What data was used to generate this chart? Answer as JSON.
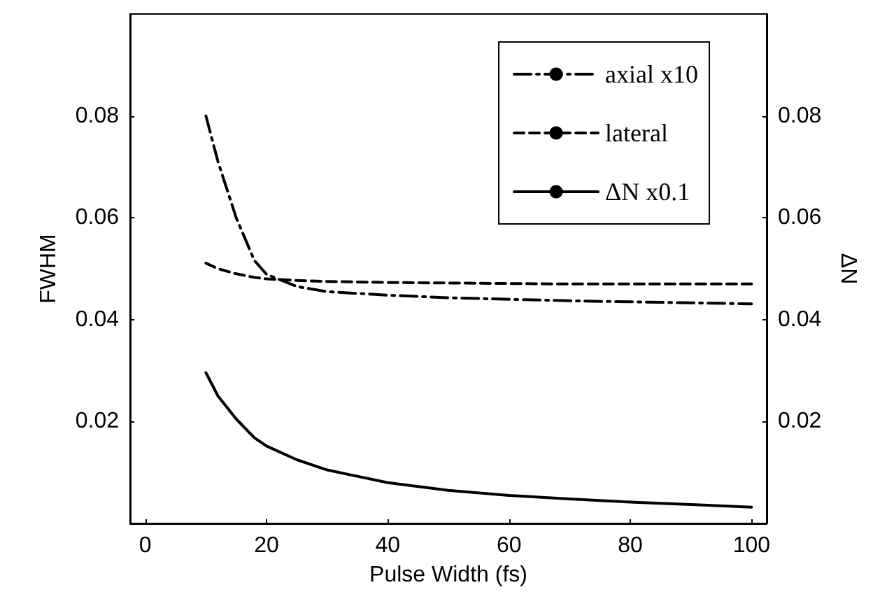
{
  "chart_data": {
    "type": "line",
    "xlabel": "Pulse Width (fs)",
    "ylabel": "FWHM",
    "y2label": "ΔN",
    "x": [
      10,
      12,
      15,
      18,
      20,
      25,
      30,
      40,
      50,
      60,
      70,
      80,
      90,
      100
    ],
    "series": [
      {
        "name": "axial x10",
        "color": "#000000",
        "line_style": "dashdot",
        "values": [
          0.08,
          0.071,
          0.06,
          0.0516,
          0.0489,
          0.0465,
          0.0455,
          0.0448,
          0.0443,
          0.044,
          0.0437,
          0.0435,
          0.0433,
          0.0431
        ]
      },
      {
        "name": "lateral",
        "color": "#000000",
        "line_style": "dashed",
        "values": [
          0.0511,
          0.05,
          0.049,
          0.0483,
          0.048,
          0.0477,
          0.0475,
          0.0473,
          0.0472,
          0.0471,
          0.047,
          0.047,
          0.047,
          0.047
        ]
      },
      {
        "name": "ΔN x0.1",
        "color": "#000000",
        "line_style": "solid",
        "values": [
          0.0296,
          0.025,
          0.0205,
          0.0168,
          0.0152,
          0.0125,
          0.0105,
          0.008,
          0.0065,
          0.0055,
          0.0048,
          0.0042,
          0.0037,
          0.0032
        ]
      }
    ],
    "xlim": [
      -2.5,
      102.5
    ],
    "xticks": [
      0,
      20,
      40,
      60,
      80,
      100
    ],
    "ylim": [
      0,
      0.1
    ],
    "yticks": [
      0.02,
      0.04,
      0.06,
      0.08
    ],
    "y2lim": [
      0,
      0.1
    ],
    "y2ticks": [
      0.02,
      0.04,
      0.06,
      0.08
    ],
    "grid": false,
    "legend": "top right",
    "marker": "none"
  }
}
